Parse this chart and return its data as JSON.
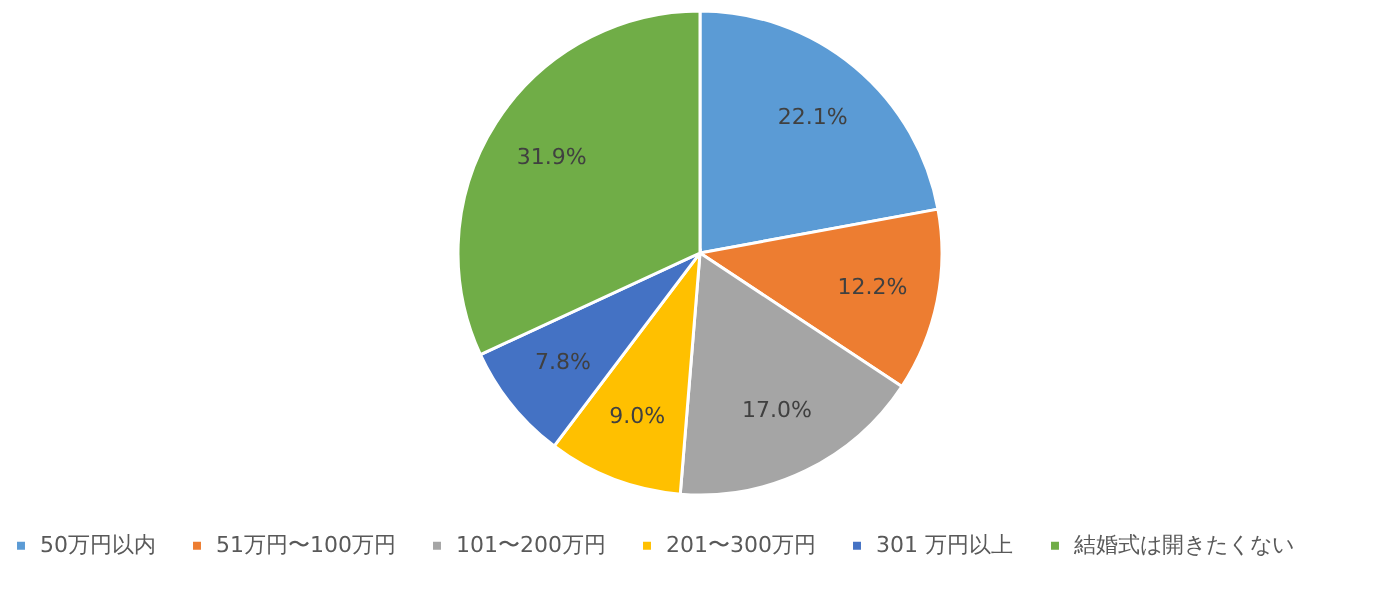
{
  "chart_data": {
    "type": "pie",
    "categories": [
      "50万円以内",
      "51万円〜100万円",
      "101〜200万円",
      "201〜300万円",
      "301 万円以上",
      "結婚式は開きたくない"
    ],
    "values": [
      22.1,
      12.2,
      17.0,
      9.0,
      7.8,
      31.9
    ],
    "colors": [
      "#5b9bd5",
      "#ed7d31",
      "#a5a5a5",
      "#ffc000",
      "#4472c4",
      "#70ad47"
    ],
    "value_labels": [
      "22.1%",
      "12.2%",
      "17.0%",
      "9.0%",
      "7.8%",
      "31.9%"
    ],
    "legend": "bottom"
  }
}
